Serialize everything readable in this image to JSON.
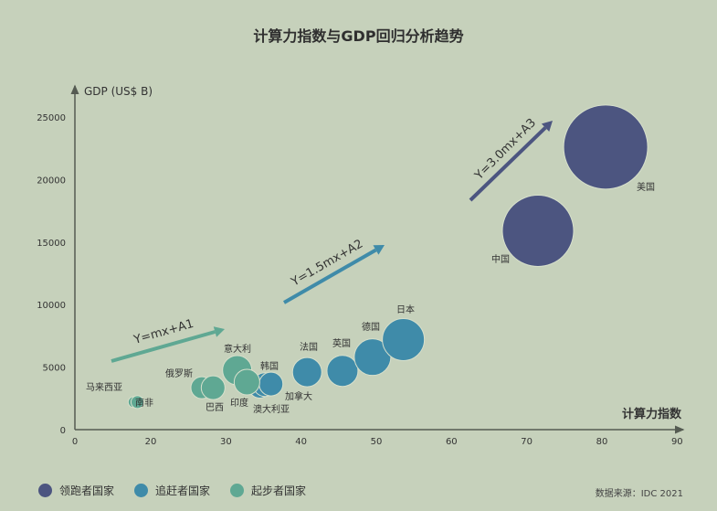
{
  "title": "计算力指数与GDP回归分析趋势",
  "source": "数据来源：IDC 2021",
  "colors": {
    "background": "#c6d1bb",
    "leader": "#4c5580",
    "chaser": "#3f8ba9",
    "starter": "#5fa893",
    "axis": "#555b52"
  },
  "legend": [
    {
      "label": "领跑者国家",
      "color": "#4c5580"
    },
    {
      "label": "追赶者国家",
      "color": "#3f8ba9"
    },
    {
      "label": "起步者国家",
      "color": "#5fa893"
    }
  ],
  "chart_data": {
    "type": "scatter",
    "subtype": "bubble",
    "title": "计算力指数与GDP回归分析趋势",
    "xlabel": "计算力指数",
    "ylabel": "GDP (US$ B)",
    "x_ticks": [
      0,
      20,
      30,
      40,
      50,
      60,
      70,
      80,
      90
    ],
    "y_ticks": [
      0,
      5000,
      10000,
      15000,
      20000,
      25000
    ],
    "xlim": [
      0,
      90
    ],
    "ylim": [
      0,
      25000
    ],
    "grid": false,
    "legend_position": "bottom-left",
    "series": [
      {
        "name": "领跑者国家",
        "color": "#4c5580",
        "points": [
          {
            "label": "中国",
            "x": 71.5,
            "y": 15900,
            "r": 39
          },
          {
            "label": "美国",
            "x": 80.5,
            "y": 22600,
            "r": 46
          }
        ]
      },
      {
        "name": "追赶者国家",
        "color": "#3f8ba9",
        "points": [
          {
            "label": "澳大利亚",
            "x": 34.5,
            "y": 3400,
            "r": 12
          },
          {
            "label": "加拿大",
            "x": 35.2,
            "y": 3600,
            "r": 13
          },
          {
            "label": "韩国",
            "x": 36,
            "y": 3650,
            "r": 13
          },
          {
            "label": "法国",
            "x": 40.8,
            "y": 4600,
            "r": 16
          },
          {
            "label": "英国",
            "x": 45.5,
            "y": 4700,
            "r": 17
          },
          {
            "label": "德国",
            "x": 49.5,
            "y": 5800,
            "r": 20
          },
          {
            "label": "日本",
            "x": 53.6,
            "y": 7200,
            "r": 23
          }
        ]
      },
      {
        "name": "起步者国家",
        "color": "#5fa893",
        "points": [
          {
            "label": "马来西亚",
            "x": 15.5,
            "y": 2200,
            "r": 6
          },
          {
            "label": "南非",
            "x": 16.5,
            "y": 2200,
            "r": 7
          },
          {
            "label": "俄罗斯",
            "x": 26.8,
            "y": 3350,
            "r": 12
          },
          {
            "label": "巴西",
            "x": 28.3,
            "y": 3350,
            "r": 13
          },
          {
            "label": "意大利",
            "x": 31.5,
            "y": 4750,
            "r": 16
          },
          {
            "label": "印度",
            "x": 32.8,
            "y": 3800,
            "r": 14
          }
        ]
      }
    ],
    "annotations": [
      {
        "text": "Y=mx+A1",
        "color": "#5fa893"
      },
      {
        "text": "Y=1.5mx+A2",
        "color": "#3f8ba9"
      },
      {
        "text": "Y=3.0mx+A3",
        "color": "#4c5580"
      }
    ]
  }
}
